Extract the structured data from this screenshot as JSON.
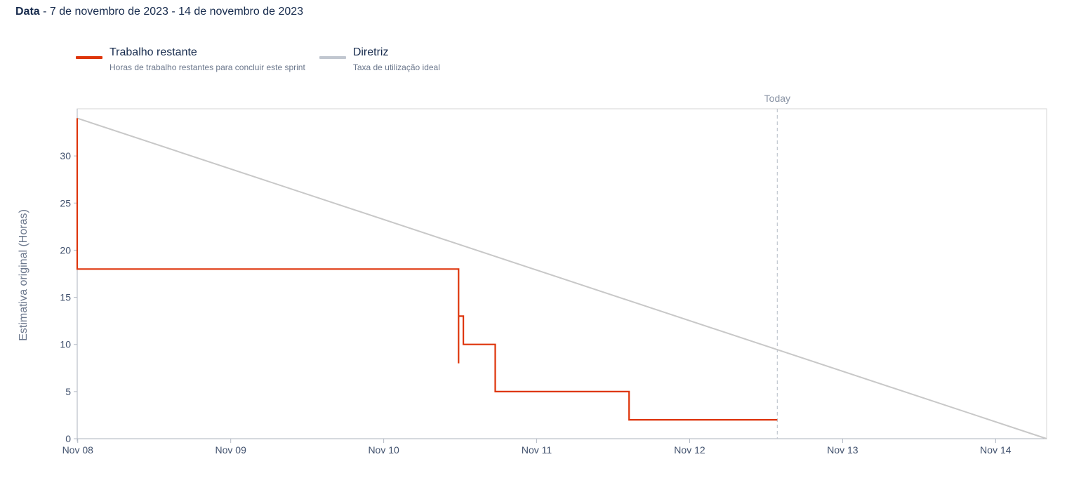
{
  "header": {
    "label": "Data",
    "range": " - 7 de novembro de 2023 - 14 de novembro de 2023"
  },
  "legend": [
    {
      "title": "Trabalho restante",
      "description": "Horas de trabalho restantes para concluir este sprint",
      "color": "#de350b"
    },
    {
      "title": "Diretriz",
      "description": "Taxa de utilização ideal",
      "color": "#c1c7d0"
    }
  ],
  "chart_data": {
    "type": "line",
    "title": "",
    "xlabel": "",
    "ylabel": "Estimativa original (Horas)",
    "x_ticks": [
      "Nov 08",
      "Nov 09",
      "Nov 10",
      "Nov 11",
      "Nov 12",
      "Nov 13",
      "Nov 14"
    ],
    "x_tick_dates": [
      "2023-11-08",
      "2023-11-09",
      "2023-11-10",
      "2023-11-11",
      "2023-11-12",
      "2023-11-13",
      "2023-11-14"
    ],
    "y_ticks": [
      0,
      5,
      10,
      15,
      20,
      25,
      30
    ],
    "xlim": [
      "2023-11-07T23:55",
      "2023-11-14T08:00"
    ],
    "ylim": [
      0,
      35
    ],
    "grid": false,
    "legend_position": "top-left",
    "today": {
      "label": "Today",
      "x": "2023-11-12T13:45"
    },
    "series": [
      {
        "name": "Diretriz",
        "color": "#c8c8c8",
        "points": [
          {
            "x": "2023-11-07T23:55",
            "y": 34
          },
          {
            "x": "2023-11-14T08:00",
            "y": 0
          }
        ]
      },
      {
        "name": "Trabalho restante",
        "color": "#de350b",
        "points": [
          {
            "x": "2023-11-07T23:55",
            "y": 34
          },
          {
            "x": "2023-11-07T23:55",
            "y": 18
          },
          {
            "x": "2023-11-10T11:45",
            "y": 18
          },
          {
            "x": "2023-11-10T11:45",
            "y": 8
          },
          {
            "x": "2023-11-10T11:45",
            "y": 13
          },
          {
            "x": "2023-11-10T12:30",
            "y": 13
          },
          {
            "x": "2023-11-10T12:30",
            "y": 10
          },
          {
            "x": "2023-11-10T17:30",
            "y": 10
          },
          {
            "x": "2023-11-10T17:30",
            "y": 5
          },
          {
            "x": "2023-11-11T14:30",
            "y": 5
          },
          {
            "x": "2023-11-11T14:30",
            "y": 2
          },
          {
            "x": "2023-11-12T13:45",
            "y": 2
          }
        ]
      }
    ]
  }
}
